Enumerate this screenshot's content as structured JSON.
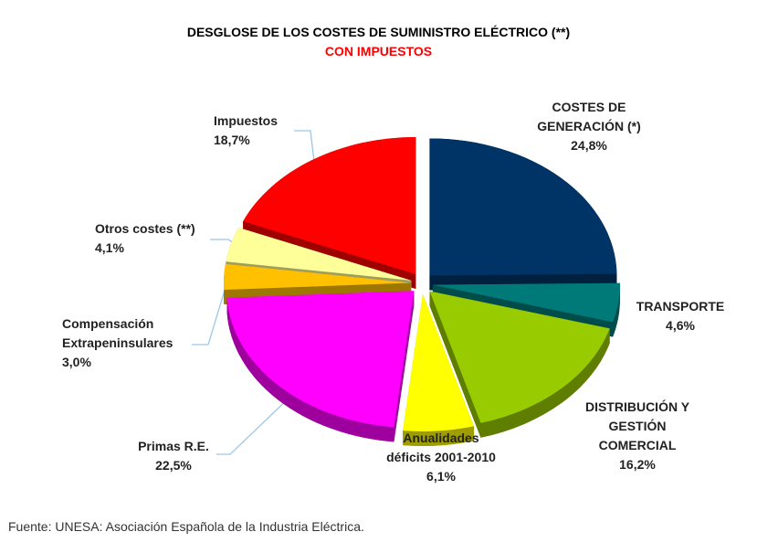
{
  "chart_data": {
    "type": "pie",
    "title": "DESGLOSE DE LOS COSTES DE SUMINISTRO ELÉCTRICO (**)",
    "subtitle": "CON IMPUESTOS",
    "subtitle_color": "#ff0000",
    "source": "Fuente: UNESA: Asociación Española de la Industria Eléctrica.",
    "categories": [
      "COSTES DE\nGENERACIÓN (*)",
      "TRANSPORTE",
      "DISTRIBUCIÓN Y\nGESTIÓN\nCOMERCIAL",
      "Anualidades\ndéficits 2001-2010",
      "Primas R.E.",
      "Compensación\nExtrapeninsulares",
      "Otros costes (**)",
      "Impuestos"
    ],
    "values": [
      24.8,
      4.6,
      16.2,
      6.1,
      22.5,
      3.0,
      4.1,
      18.7
    ],
    "value_labels": [
      "24,8%",
      "4,6%",
      "16,2%",
      "6,1%",
      "22,5%",
      "3,0%",
      "4,1%",
      "18,7%"
    ],
    "colors": [
      "#003366",
      "#007a78",
      "#99cc00",
      "#ffff00",
      "#ff00ff",
      "#ffc000",
      "#ffff99",
      "#ff0000"
    ]
  }
}
